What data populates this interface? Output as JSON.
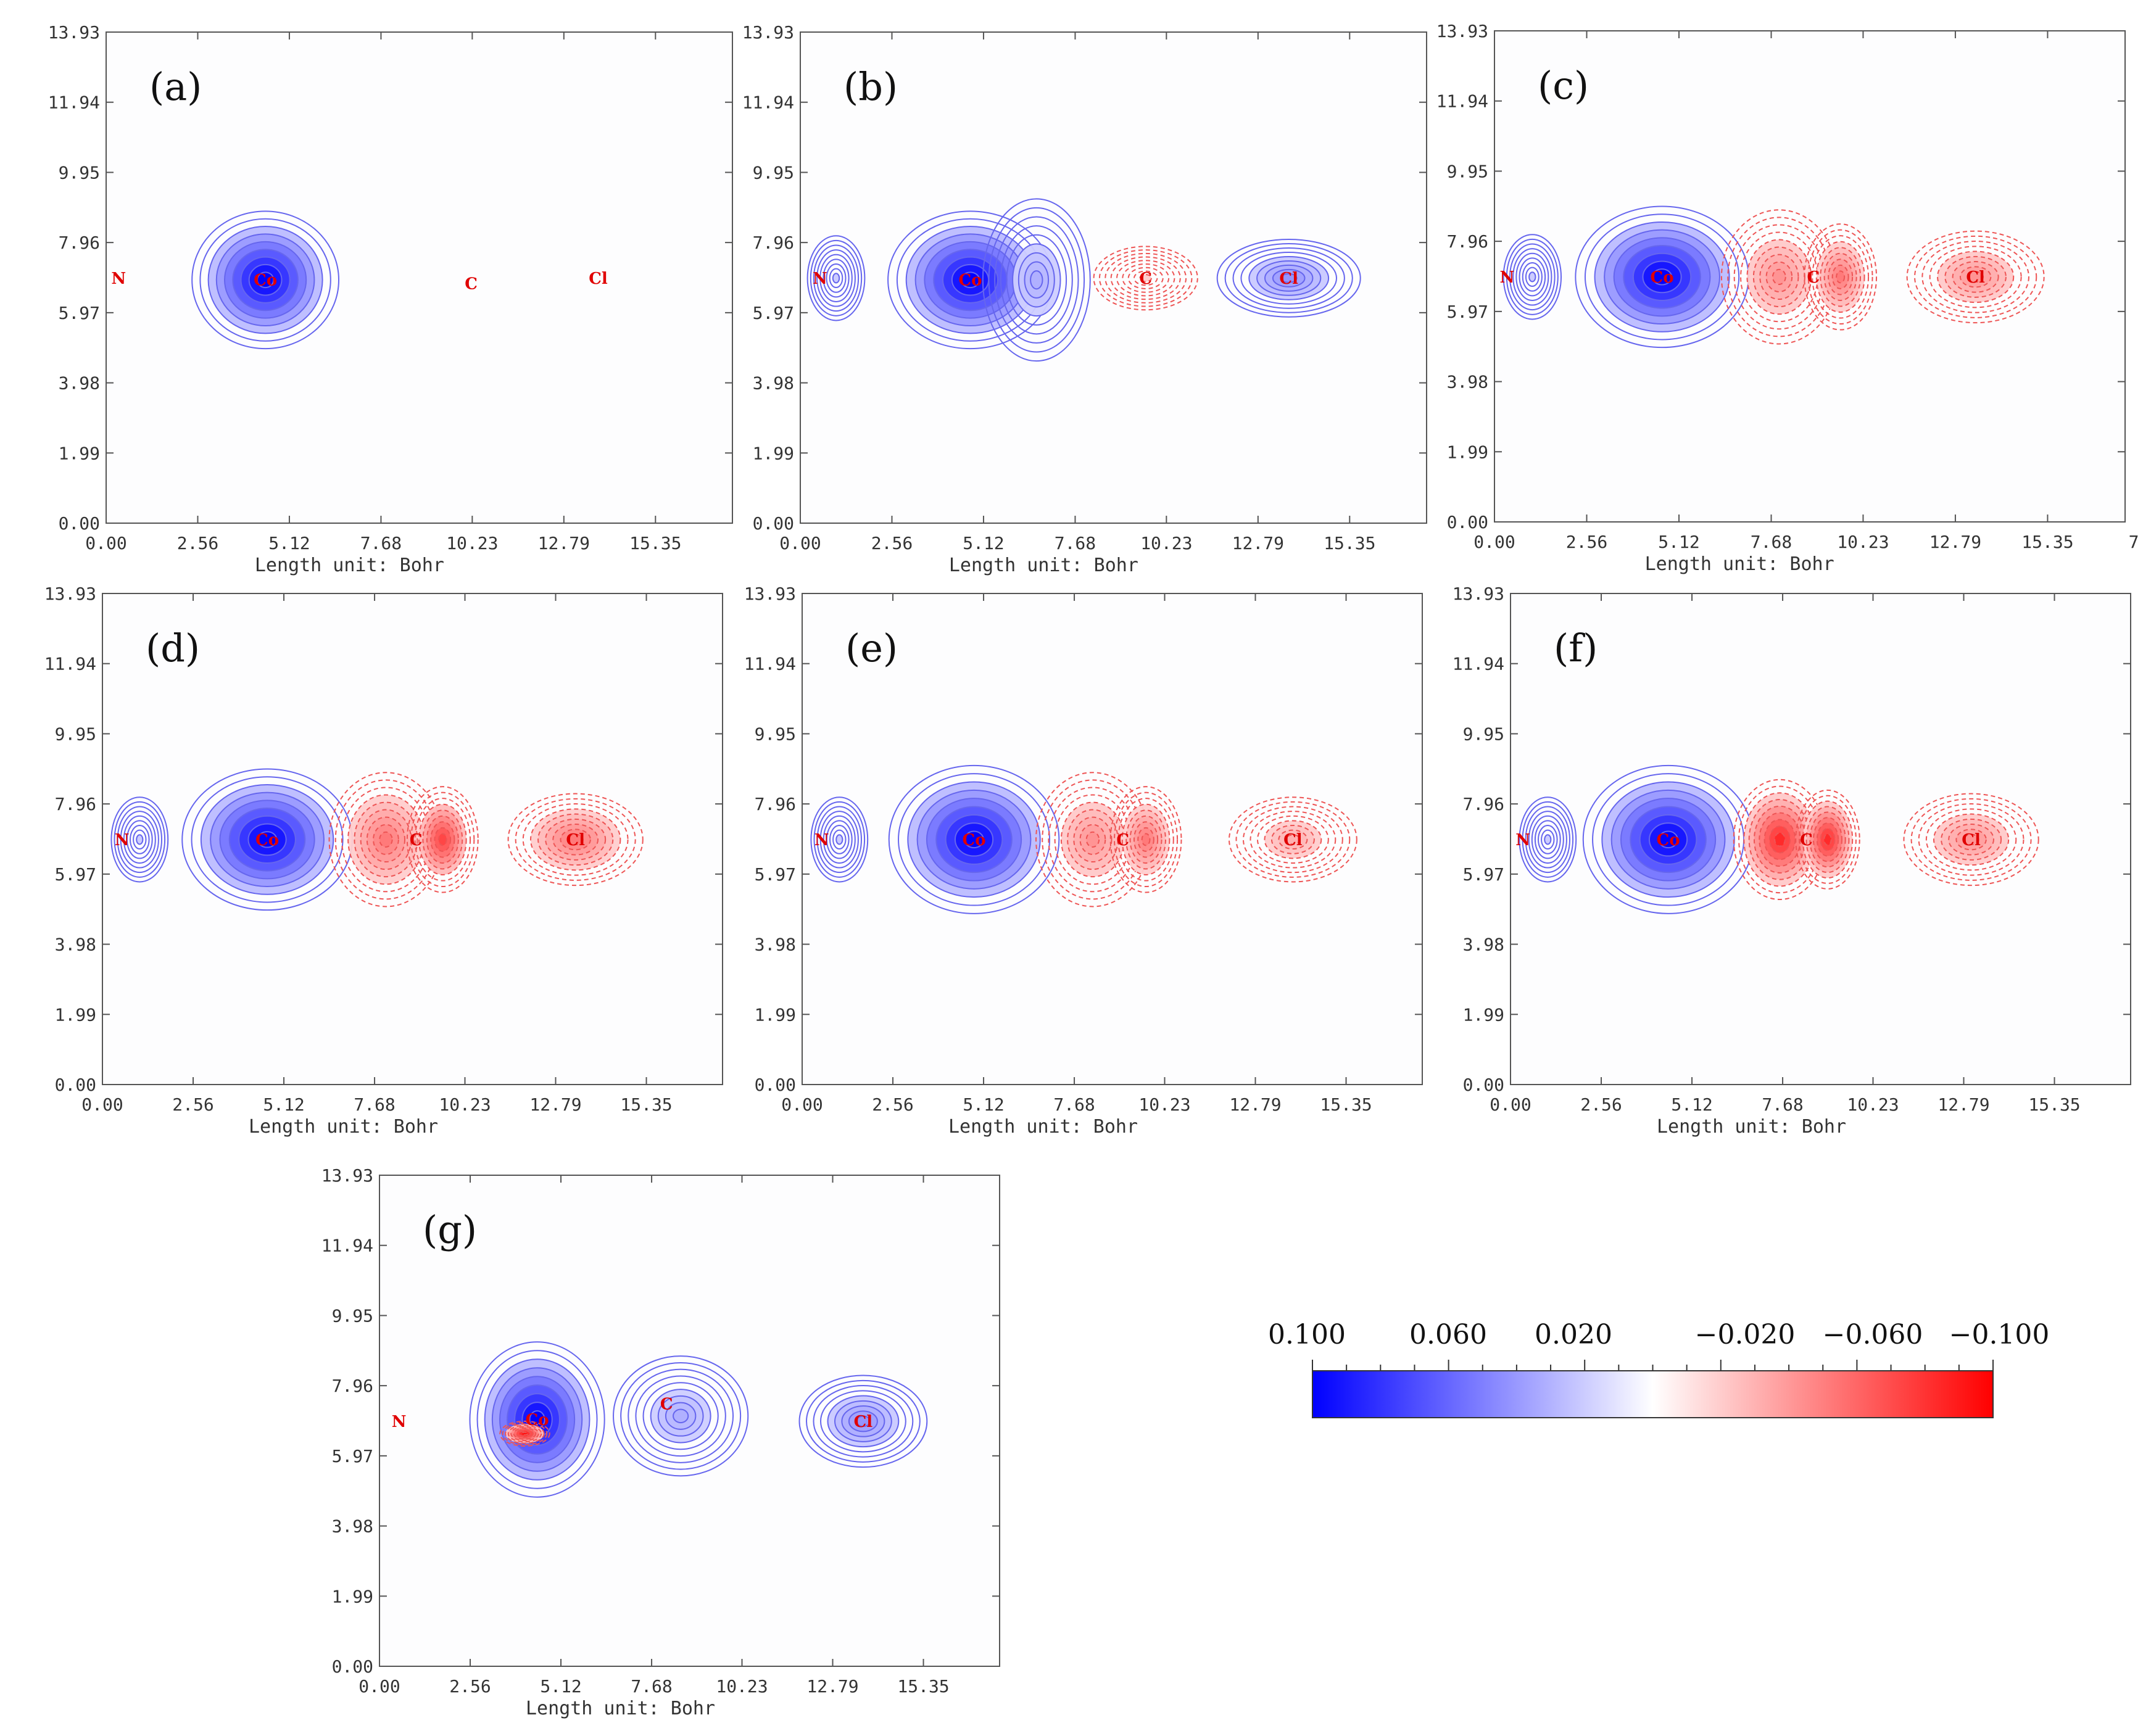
{
  "figure": {
    "xlabel": "Length unit: Bohr",
    "x_ticks": [
      "0.00",
      "2.56",
      "5.12",
      "7.68",
      "10.23",
      "12.79",
      "15.35"
    ],
    "y_ticks": [
      "0.00",
      "1.99",
      "3.98",
      "5.97",
      "7.96",
      "9.95",
      "11.94",
      "13.93"
    ],
    "panel_c_extra_tick": "7"
  },
  "chart_data": [
    {
      "type": "heatmap",
      "label": "(a)",
      "title": "",
      "xlabel": "Length unit: Bohr",
      "ylabel": "",
      "xlim": [
        0,
        17.5
      ],
      "ylim": [
        0,
        13.93
      ],
      "atoms": [
        {
          "name": "N",
          "x": 0.35,
          "y": 6.95
        },
        {
          "name": "Co",
          "x": 4.45,
          "y": 6.9
        },
        {
          "name": "C",
          "x": 10.2,
          "y": 6.8
        },
        {
          "name": "Cl",
          "x": 13.75,
          "y": 6.95
        }
      ],
      "lobes": [
        {
          "x": 4.45,
          "y": 6.9,
          "value": 0.1,
          "rx": 2.05,
          "ry": 1.95
        }
      ]
    },
    {
      "type": "heatmap",
      "label": "(b)",
      "title": "",
      "xlabel": "Length unit: Bohr",
      "ylabel": "",
      "xlim": [
        0,
        17.5
      ],
      "ylim": [
        0,
        13.93
      ],
      "atoms": [
        {
          "name": "N",
          "x": 0.55,
          "y": 6.95
        },
        {
          "name": "Co",
          "x": 4.75,
          "y": 6.9
        },
        {
          "name": "C",
          "x": 9.65,
          "y": 6.95
        },
        {
          "name": "Cl",
          "x": 13.65,
          "y": 6.95
        }
      ],
      "lobes": [
        {
          "x": 4.75,
          "y": 6.9,
          "value": 0.1,
          "rx": 2.3,
          "ry": 1.95
        },
        {
          "x": 6.6,
          "y": 6.9,
          "value": 0.03,
          "rx": 1.5,
          "ry": 2.3
        },
        {
          "x": 9.65,
          "y": 6.95,
          "value": -0.02,
          "rx": 1.45,
          "ry": 0.9
        },
        {
          "x": 13.65,
          "y": 6.95,
          "value": 0.04,
          "rx": 2.0,
          "ry": 1.1
        },
        {
          "x": 1.0,
          "y": 6.95,
          "value": 0.02,
          "rx": 0.8,
          "ry": 1.2
        }
      ]
    },
    {
      "type": "heatmap",
      "label": "(c)",
      "title": "",
      "xlabel": "Length unit: Bohr",
      "ylabel": "",
      "xlim": [
        0,
        17.5
      ],
      "ylim": [
        0,
        13.93
      ],
      "atoms": [
        {
          "name": "N",
          "x": 0.35,
          "y": 6.95
        },
        {
          "name": "Co",
          "x": 4.65,
          "y": 6.95
        },
        {
          "name": "C",
          "x": 8.85,
          "y": 6.95
        },
        {
          "name": "Cl",
          "x": 13.35,
          "y": 6.95
        }
      ],
      "lobes": [
        {
          "x": 4.65,
          "y": 6.95,
          "value": 0.1,
          "rx": 2.4,
          "ry": 2.0
        },
        {
          "x": 7.9,
          "y": 6.95,
          "value": -0.04,
          "rx": 1.6,
          "ry": 1.9
        },
        {
          "x": 9.6,
          "y": 6.95,
          "value": -0.05,
          "rx": 1.0,
          "ry": 1.5
        },
        {
          "x": 13.35,
          "y": 6.95,
          "value": -0.04,
          "rx": 1.9,
          "ry": 1.3
        },
        {
          "x": 1.05,
          "y": 6.95,
          "value": 0.02,
          "rx": 0.8,
          "ry": 1.2
        }
      ]
    },
    {
      "type": "heatmap",
      "label": "(d)",
      "title": "",
      "xlabel": "Length unit: Bohr",
      "ylabel": "",
      "xlim": [
        0,
        17.5
      ],
      "ylim": [
        0,
        13.93
      ],
      "atoms": [
        {
          "name": "N",
          "x": 0.55,
          "y": 6.95
        },
        {
          "name": "Co",
          "x": 4.65,
          "y": 6.95
        },
        {
          "name": "C",
          "x": 8.85,
          "y": 6.95
        },
        {
          "name": "Cl",
          "x": 13.35,
          "y": 6.95
        }
      ],
      "lobes": [
        {
          "x": 4.65,
          "y": 6.95,
          "value": 0.1,
          "rx": 2.4,
          "ry": 2.0
        },
        {
          "x": 8.0,
          "y": 6.95,
          "value": -0.05,
          "rx": 1.6,
          "ry": 1.9
        },
        {
          "x": 9.6,
          "y": 6.95,
          "value": -0.07,
          "rx": 1.0,
          "ry": 1.5
        },
        {
          "x": 13.35,
          "y": 6.95,
          "value": -0.05,
          "rx": 1.9,
          "ry": 1.3
        },
        {
          "x": 1.05,
          "y": 6.95,
          "value": 0.02,
          "rx": 0.8,
          "ry": 1.2
        }
      ]
    },
    {
      "type": "heatmap",
      "label": "(e)",
      "title": "",
      "xlabel": "Length unit: Bohr",
      "ylabel": "",
      "xlim": [
        0,
        17.5
      ],
      "ylim": [
        0,
        13.93
      ],
      "atoms": [
        {
          "name": "N",
          "x": 0.55,
          "y": 6.95
        },
        {
          "name": "Co",
          "x": 4.85,
          "y": 6.95
        },
        {
          "name": "C",
          "x": 9.05,
          "y": 6.95
        },
        {
          "name": "Cl",
          "x": 13.85,
          "y": 6.95
        }
      ],
      "lobes": [
        {
          "x": 4.85,
          "y": 6.95,
          "value": 0.1,
          "rx": 2.4,
          "ry": 2.1
        },
        {
          "x": 8.2,
          "y": 6.95,
          "value": -0.04,
          "rx": 1.6,
          "ry": 1.9
        },
        {
          "x": 9.7,
          "y": 6.95,
          "value": -0.05,
          "rx": 1.0,
          "ry": 1.5
        },
        {
          "x": 13.85,
          "y": 6.95,
          "value": -0.03,
          "rx": 1.8,
          "ry": 1.2
        },
        {
          "x": 1.05,
          "y": 6.95,
          "value": 0.02,
          "rx": 0.8,
          "ry": 1.2
        }
      ]
    },
    {
      "type": "heatmap",
      "label": "(f)",
      "title": "",
      "xlabel": "Length unit: Bohr",
      "ylabel": "",
      "xlim": [
        0,
        17.5
      ],
      "ylim": [
        0,
        13.93
      ],
      "atoms": [
        {
          "name": "N",
          "x": 0.35,
          "y": 6.95
        },
        {
          "name": "Co",
          "x": 4.45,
          "y": 6.95
        },
        {
          "name": "C",
          "x": 8.35,
          "y": 6.95
        },
        {
          "name": "Cl",
          "x": 13.0,
          "y": 6.95
        }
      ],
      "lobes": [
        {
          "x": 4.45,
          "y": 6.95,
          "value": 0.1,
          "rx": 2.4,
          "ry": 2.1
        },
        {
          "x": 7.6,
          "y": 6.95,
          "value": -0.08,
          "rx": 1.3,
          "ry": 1.7
        },
        {
          "x": 8.95,
          "y": 6.95,
          "value": -0.08,
          "rx": 0.9,
          "ry": 1.4
        },
        {
          "x": 13.0,
          "y": 6.95,
          "value": -0.04,
          "rx": 1.9,
          "ry": 1.3
        },
        {
          "x": 1.05,
          "y": 6.95,
          "value": 0.02,
          "rx": 0.8,
          "ry": 1.2
        }
      ]
    },
    {
      "type": "heatmap",
      "label": "(g)",
      "title": "",
      "xlabel": "Length unit: Bohr",
      "ylabel": "",
      "xlim": [
        0,
        17.5
      ],
      "ylim": [
        0,
        13.93
      ],
      "atoms": [
        {
          "name": "N",
          "x": 0.55,
          "y": 6.95
        },
        {
          "name": "Co",
          "x": 4.45,
          "y": 7.0
        },
        {
          "name": "C",
          "x": 8.1,
          "y": 7.45
        },
        {
          "name": "Cl",
          "x": 13.65,
          "y": 6.95
        }
      ],
      "lobes": [
        {
          "x": 4.45,
          "y": 7.0,
          "value": 0.1,
          "rx": 1.9,
          "ry": 2.2
        },
        {
          "x": 8.5,
          "y": 7.1,
          "value": 0.03,
          "rx": 1.9,
          "ry": 1.7
        },
        {
          "x": 13.65,
          "y": 6.95,
          "value": 0.04,
          "rx": 1.8,
          "ry": 1.3
        },
        {
          "x": 4.1,
          "y": 6.6,
          "value": -0.09,
          "rx": 0.7,
          "ry": 0.35
        }
      ]
    }
  ],
  "colorbar": {
    "labels": [
      "0.100",
      "0.060",
      "0.020",
      "−0.020",
      "−0.060",
      "−0.100"
    ],
    "min": -0.1,
    "max": 0.1,
    "color_positive": "#0000ff",
    "color_mid": "#ffffff",
    "color_negative": "#ff0000",
    "contour_positive": "#6666ee",
    "contour_negative": "#ee5555"
  }
}
